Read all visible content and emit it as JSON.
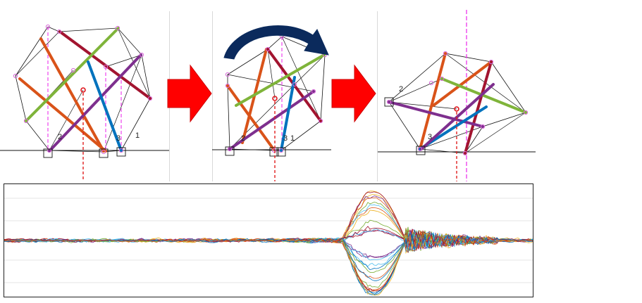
{
  "panels": [
    {
      "name": "panel-1",
      "node_labels": [
        "2",
        "3",
        "1"
      ]
    },
    {
      "name": "panel-2",
      "node_labels": [
        "2",
        "3",
        "1"
      ]
    },
    {
      "name": "panel-3",
      "node_labels": [
        "2",
        "3"
      ]
    }
  ],
  "colors": {
    "strut_green": "#7fb43a",
    "strut_red": "#a2142f",
    "strut_orange": "#d95319",
    "strut_blue": "#0072bd",
    "strut_purple": "#7e2f8e",
    "node_marker": "#d86ad8",
    "centroid_marker": "#e11f1f",
    "center_line": "#ee44ee",
    "arrow_red": "#ff0000",
    "rotate_arrow": "#0b2a5c",
    "signal_palette": [
      "#0072bd",
      "#d95319",
      "#edb120",
      "#7e2f8e",
      "#77ac30",
      "#4dbeee",
      "#a2142f"
    ]
  },
  "signal_plot": {
    "series_count": 30,
    "gridlines": 5
  }
}
